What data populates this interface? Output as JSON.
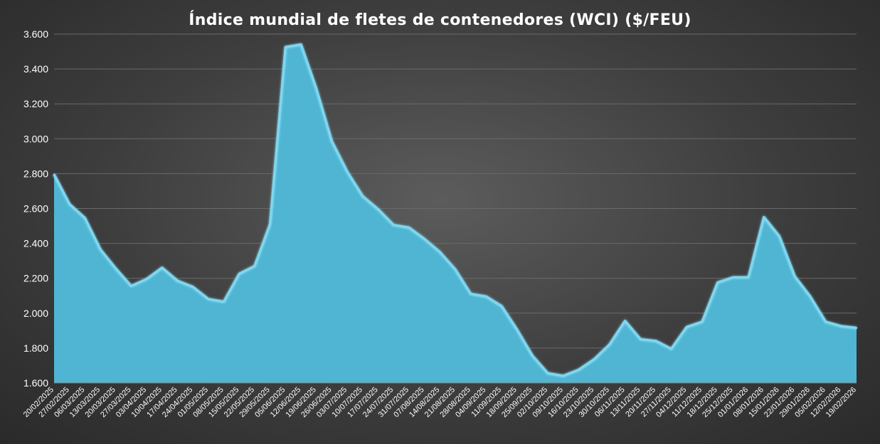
{
  "chart_data": {
    "type": "area",
    "title": "Índice mundial de fletes de contenedores (WCI) ($/FEU)",
    "xlabel": "",
    "ylabel": "",
    "ylim": [
      1600,
      3600
    ],
    "yticks": [
      1600,
      1800,
      2000,
      2200,
      2400,
      2600,
      2800,
      3000,
      3200,
      3400,
      3600
    ],
    "ytick_labels": [
      "1.600",
      "1.800",
      "2.000",
      "2.200",
      "2.400",
      "2.600",
      "2.800",
      "3.000",
      "3.200",
      "3.400",
      "3.600"
    ],
    "grid": true,
    "legend": "none",
    "colors": {
      "fill": "#4fb5d3",
      "line": "#7fd6ee"
    },
    "x": [
      "20/02/2025",
      "27/02/2025",
      "06/03/2025",
      "13/03/2025",
      "20/03/2025",
      "27/03/2025",
      "03/04/2025",
      "10/04/2025",
      "17/04/2025",
      "24/04/2025",
      "01/05/2025",
      "08/05/2025",
      "15/05/2025",
      "22/05/2025",
      "29/05/2025",
      "05/06/2025",
      "12/06/2025",
      "19/06/2025",
      "26/06/2025",
      "03/07/2025",
      "10/07/2025",
      "17/07/2025",
      "24/07/2025",
      "31/07/2025",
      "07/08/2025",
      "14/08/2025",
      "21/08/2025",
      "28/08/2025",
      "04/09/2025",
      "11/09/2025",
      "18/09/2025",
      "25/09/2025",
      "02/10/2025",
      "09/10/2025",
      "16/10/2025",
      "23/10/2025",
      "30/10/2025",
      "06/11/2025",
      "13/11/2025",
      "20/11/2025",
      "27/11/2025",
      "04/12/2025",
      "11/12/2025",
      "18/12/2025",
      "25/12/2025",
      "01/01/2026",
      "08/01/2026",
      "15/01/2026",
      "22/01/2026",
      "29/01/2026",
      "05/02/2026",
      "12/02/2026",
      "19/02/2026"
    ],
    "values": [
      2795,
      2625,
      2545,
      2365,
      2255,
      2155,
      2195,
      2260,
      2185,
      2150,
      2080,
      2065,
      2225,
      2270,
      2510,
      3525,
      3540,
      3285,
      2985,
      2810,
      2670,
      2595,
      2505,
      2490,
      2425,
      2350,
      2250,
      2110,
      2095,
      2040,
      1905,
      1755,
      1655,
      1640,
      1675,
      1735,
      1820,
      1955,
      1850,
      1840,
      1795,
      1920,
      1950,
      2175,
      2205,
      2205,
      2550,
      2440,
      2210,
      2095,
      1950,
      1925,
      1915
    ]
  }
}
